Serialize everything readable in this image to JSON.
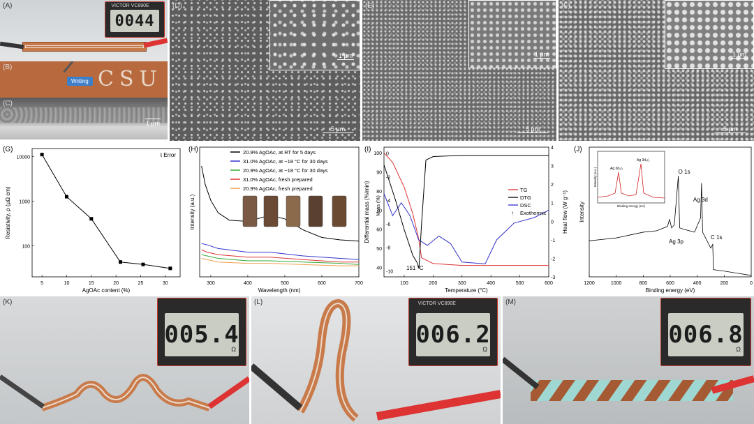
{
  "panels": {
    "A": {
      "label": "(A)",
      "meter_value": "0044",
      "meter_brand": "VICTOR VC890E"
    },
    "B": {
      "label": "(B)",
      "arrow_text": "Writing",
      "written_text": "CSU"
    },
    "C": {
      "label": "(C)",
      "scale": "1 μm"
    },
    "D": {
      "label": "(D)",
      "inset_scale": "1 μm",
      "main_scale": "5 μm"
    },
    "E": {
      "label": "(E)",
      "inset_scale": "1 μm",
      "main_scale": "5 μm"
    },
    "F": {
      "label": "(F)",
      "inset_scale": "1 μm",
      "main_scale": "5 μm"
    },
    "K": {
      "label": "(K)",
      "meter_value": "005.4",
      "unit": "Ω"
    },
    "L": {
      "label": "(L)",
      "meter_value": "006.2",
      "meter_brand": "VICTOR VC890E",
      "unit": "Ω"
    },
    "M": {
      "label": "(M)",
      "meter_value": "006.8",
      "unit": "Ω"
    }
  },
  "chart_data": [
    {
      "panel": "(G)",
      "type": "line",
      "xlabel": "AgOAc content (%)",
      "ylabel": "Resistivity, ρ (μΩ cm)",
      "yscale": "log",
      "x": [
        5,
        10,
        15,
        20.9,
        25.5,
        31
      ],
      "y": [
        11000,
        1250,
        400,
        43,
        38,
        31
      ],
      "xticks": [
        "5",
        "10",
        "15",
        "20",
        "25",
        "30"
      ],
      "yticks": [
        "100",
        "1000",
        "10000"
      ],
      "xlim": [
        3,
        33
      ],
      "ylim": [
        20,
        15000
      ],
      "legend": "Error"
    },
    {
      "panel": "(H)",
      "type": "line",
      "xlabel": "Wavelength (nm)",
      "ylabel": "Intensity (a.u.)",
      "xlim": [
        270,
        700
      ],
      "xticks": [
        "300",
        "400",
        "500",
        "600",
        "700"
      ],
      "series": [
        {
          "name": "20.9% AgOAc, at RT for 5 days",
          "color": "#000000",
          "x": [
            275,
            285,
            300,
            320,
            350,
            400,
            460,
            500,
            550,
            600,
            650,
            700
          ],
          "y": [
            0.9,
            0.75,
            0.62,
            0.52,
            0.46,
            0.45,
            0.5,
            0.47,
            0.38,
            0.32,
            0.3,
            0.29
          ]
        },
        {
          "name": "31.0% AgOAc, at −18 °C for 30 days",
          "color": "#3333cc",
          "x": [
            275,
            290,
            320,
            400,
            460,
            550,
            650,
            700
          ],
          "y": [
            0.27,
            0.26,
            0.23,
            0.2,
            0.2,
            0.17,
            0.15,
            0.14
          ]
        },
        {
          "name": "20.9% AgOAc, at −18 °C for 30 days",
          "color": "#33aa33",
          "x": [
            275,
            290,
            320,
            400,
            460,
            550,
            650,
            700
          ],
          "y": [
            0.18,
            0.17,
            0.15,
            0.13,
            0.13,
            0.12,
            0.11,
            0.1
          ]
        },
        {
          "name": "31.0% AgOAc, fresh prepared",
          "color": "#dd3333",
          "x": [
            275,
            290,
            320,
            400,
            460,
            550,
            650,
            700
          ],
          "y": [
            0.22,
            0.2,
            0.18,
            0.16,
            0.16,
            0.14,
            0.12,
            0.12
          ]
        },
        {
          "name": "20.9% AgOAc, fresh prepared",
          "color": "#f0a050",
          "x": [
            275,
            290,
            320,
            400,
            460,
            550,
            650,
            700
          ],
          "y": [
            0.15,
            0.14,
            0.12,
            0.11,
            0.11,
            0.1,
            0.09,
            0.09
          ]
        }
      ]
    },
    {
      "panel": "(I)",
      "type": "line",
      "xlabel": "Temperature (°C)",
      "ylabel_left": "Mass (%)",
      "ylabel_outer": "Differential mass (%/min)",
      "ylabel_right": "Heat flow (W g⁻¹)",
      "xlim": [
        30,
        600
      ],
      "xticks": [
        "100",
        "200",
        "300",
        "400",
        "500",
        "600"
      ],
      "yticks_left": [
        "-10",
        "-8",
        "-6",
        "-4",
        "-2",
        "0"
      ],
      "yticks_mass": [
        "40",
        "50",
        "60",
        "70",
        "80",
        "90",
        "100"
      ],
      "yticks_right": [
        "-3",
        "-2",
        "-1",
        "0",
        "1",
        "2",
        "3",
        "4"
      ],
      "annotation": "151 °C",
      "legend": [
        "TG",
        "DTG",
        "DSC",
        "Exothermic"
      ],
      "series": [
        {
          "name": "TG",
          "color": "#dd3333",
          "x": [
            30,
            60,
            100,
            130,
            150,
            160,
            200,
            300,
            600
          ],
          "y": [
            100,
            95,
            82,
            68,
            55,
            45,
            42,
            41,
            41
          ]
        },
        {
          "name": "DTG",
          "color": "#000000",
          "x": [
            30,
            70,
            100,
            130,
            145,
            151,
            160,
            175,
            200,
            300,
            600
          ],
          "y": [
            -1,
            -4,
            -6.5,
            -8.7,
            -9.3,
            -9.8,
            -6,
            -0.6,
            -0.3,
            -0.2,
            -0.2
          ]
        },
        {
          "name": "DSC",
          "color": "#3333cc",
          "x": [
            30,
            60,
            90,
            120,
            150,
            180,
            220,
            260,
            300,
            380,
            420,
            480,
            550,
            600
          ],
          "y": [
            1.5,
            0.3,
            1.0,
            0.3,
            -1.0,
            -1.3,
            -0.8,
            -1.2,
            -2.2,
            -2.3,
            -1.0,
            -0.1,
            0.2,
            0.6
          ]
        }
      ]
    },
    {
      "panel": "(J)",
      "type": "line",
      "xlabel": "Binding energy (eV)",
      "ylabel": "Intensity",
      "xlim": [
        1200,
        0
      ],
      "xticks": [
        "1200",
        "1000",
        "800",
        "600",
        "400",
        "200",
        "0"
      ],
      "peaks": [
        "O 1s",
        "Ag 3d",
        "C 1s",
        "Ag 3p"
      ],
      "inset": {
        "xlabel": "Binding energy (eV)",
        "ylabel": "Intensity (a.u.)",
        "peaks": [
          "Ag 3d₅/₂",
          "Ag 3d₃/₂"
        ]
      }
    }
  ]
}
